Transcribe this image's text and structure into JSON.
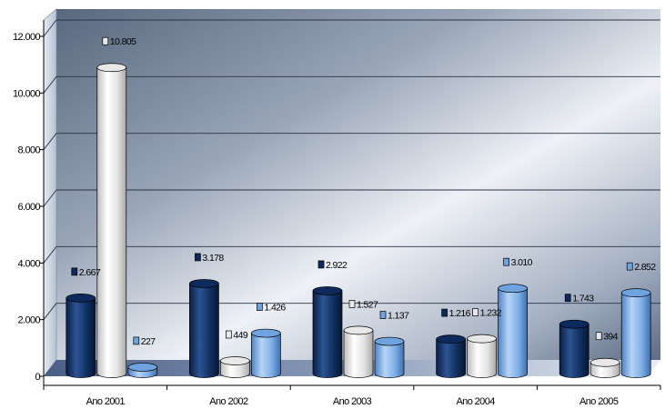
{
  "chart_data": {
    "type": "bar",
    "style": "3d-cylinder",
    "categories": [
      "Ano 2001",
      "Ano 2002",
      "Ano 2003",
      "Ano 2004",
      "Ano 2005"
    ],
    "series": [
      {
        "values": [
          2667,
          3178,
          2922,
          1216,
          1743
        ],
        "labels": [
          "2.667",
          "3.178",
          "2.922",
          "1.216",
          "1.743"
        ],
        "color": "#0e2a5c"
      },
      {
        "values": [
          10805,
          449,
          1527,
          1232,
          394
        ],
        "labels": [
          "10.805",
          "449",
          "1.527",
          "1.232",
          "394"
        ],
        "color": "#e8e8e8"
      },
      {
        "values": [
          227,
          1426,
          1137,
          3010,
          2852
        ],
        "labels": [
          "227",
          "1.426",
          "1.137",
          "3.010",
          "2.852"
        ],
        "color": "#6fa3e0"
      }
    ],
    "y_ticks": [
      0,
      2000,
      4000,
      6000,
      8000,
      10000,
      12000
    ],
    "y_tick_labels": [
      "0",
      "2.000",
      "4.000",
      "6.000",
      "8.000",
      "10.000",
      "12.000"
    ],
    "ylim": [
      0,
      12000
    ],
    "grid": true,
    "legend": "none",
    "colors": {
      "background_wall": "#6d7f9c",
      "floor": "#5a6f94"
    }
  }
}
